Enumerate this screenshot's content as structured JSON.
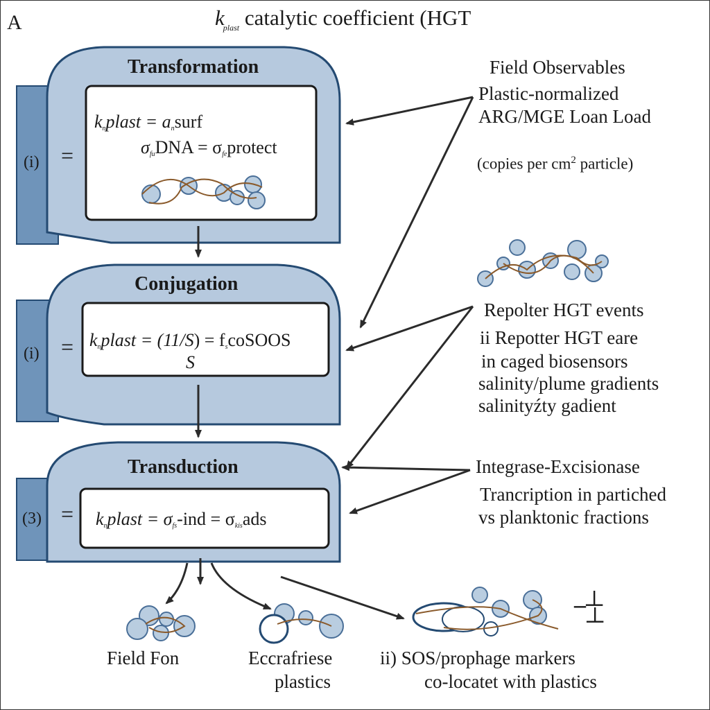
{
  "panel_letter": "A",
  "header": {
    "k": "k",
    "sub": "plast",
    "text": "catalytic coefficient  (HGT"
  },
  "stages": [
    {
      "title": "Transformation",
      "label": "(i)",
      "eq_sign": "=",
      "line1": {
        "k": "k",
        "ksub": "n",
        "mid": "plast = a",
        "asub": "n",
        "tail": "surf"
      },
      "line2": {
        "sigma": "σ",
        "sub1": "fu",
        "mid": "DNA = σ",
        "sub2": "fe",
        "tail": "protect"
      }
    },
    {
      "title": "Conjugation",
      "label": "(i)",
      "eq_sign": "=",
      "line1": {
        "k": "k",
        "ksub": "n",
        "mid": "plast = (11/",
        "s": "S",
        "close": ") = f",
        "fsub": "s",
        "tail": "coSOOS",
        "under": "S"
      }
    },
    {
      "title": "Transduction",
      "label": "(3)",
      "eq_sign": "=",
      "line1": {
        "k": "k",
        "ksub": "n",
        "mid": "plast = σ",
        "sub1": "fs",
        "mid2": "-ind = σ",
        "sub2": "kis",
        "tail": "ads"
      }
    }
  ],
  "observables": {
    "heading": "Field Observables",
    "line1": "Plastic-normalized",
    "line2": "ARG/MGE Loan Load",
    "units_prefix": "(copies per cm",
    "units_sup": "2",
    "units_suffix": " particle)"
  },
  "reporter": {
    "line1": "Repolter HGT events",
    "line2": "ii Repotter HGT eare",
    "line3": "in caged biosensors",
    "line4": "salinity/plume gradients",
    "line5": "salinityźty gadient"
  },
  "integrase": {
    "line1": "Integrase-Excisionase",
    "line2": "Trancription in partiched",
    "line3": "vs planktonic fractions"
  },
  "bottom": {
    "left": "Field Fon",
    "middle_1": "Eccrafriese",
    "middle_2": "plastics",
    "right_1": "ii)  SOS/prophage markers",
    "right_2": "co-locatet with plastics",
    "tick_1": "–┴",
    "tick_2": "┴"
  },
  "colors": {
    "panel_fill": "#b6c9de",
    "panel_stroke": "#244a72",
    "sidebar_fill": "#6f94ba",
    "cell_fill": "#b9cde0",
    "cell_stroke": "#4a6f98",
    "link": "#8a5a2b",
    "arrow": "#2b2b2b"
  }
}
